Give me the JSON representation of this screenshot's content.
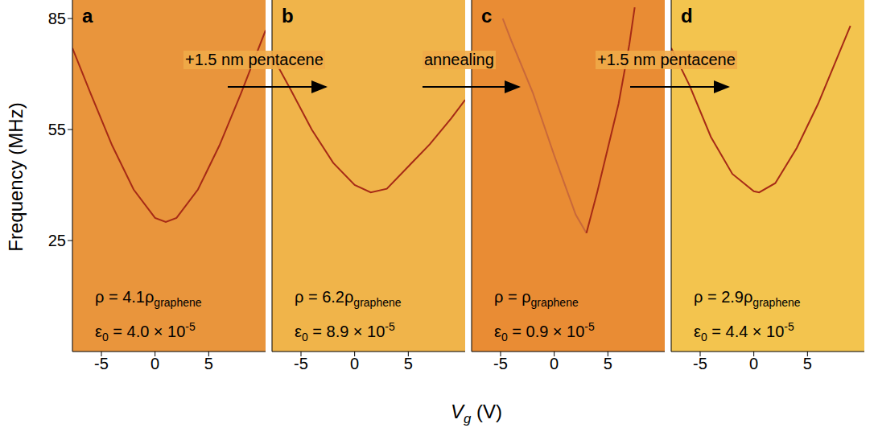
{
  "axis_titles": {
    "y": "Frequency (MHz)",
    "x": [
      {
        "t": "V"
      },
      {
        "sub": "g"
      },
      {
        "t": " (V)"
      }
    ]
  },
  "arrows": [
    {
      "label": "+1.5 nm pentacene"
    },
    {
      "label": "annealing"
    },
    {
      "label": "+1.5 nm pentacene"
    }
  ],
  "chart_data": [
    {
      "type": "line",
      "title": "a",
      "background": "#e9953c",
      "x": [
        -7.7,
        -6,
        -4,
        -2,
        0,
        1,
        2,
        4,
        6,
        8,
        10.3
      ],
      "series": [
        {
          "color": "#a62a16",
          "values": [
            77,
            64.7,
            50.7,
            38.8,
            31.1,
            30,
            31.1,
            38.8,
            50.7,
            64.7,
            81.8
          ]
        }
      ],
      "xlim": [
        -7.7,
        10.3
      ],
      "ylim": [
        -5,
        90
      ],
      "xticks": [
        -5,
        0,
        5
      ],
      "yticks": [
        25,
        55,
        85
      ],
      "tick_labels": true,
      "annotations": [
        [
          {
            "t": "ρ = 4.1ρ"
          },
          {
            "sub": "graphene"
          }
        ],
        [
          {
            "t": "ε"
          },
          {
            "sub": "0"
          },
          {
            "t": " = 4.0 × 10"
          },
          {
            "sup": "-5"
          }
        ]
      ]
    },
    {
      "type": "line",
      "title": "b",
      "background": "#f0b44a",
      "x": [
        -7.7,
        -6,
        -4,
        -2,
        0,
        1.5,
        3,
        5,
        7,
        9,
        10.3
      ],
      "series": [
        {
          "color": "#a62a16",
          "values": [
            75,
            66,
            55,
            46,
            40,
            38,
            39,
            45,
            51,
            58,
            63
          ]
        }
      ],
      "xlim": [
        -7.7,
        10.3
      ],
      "ylim": [
        -5,
        90
      ],
      "xticks": [
        -5,
        0,
        5
      ],
      "yticks": [
        25,
        55,
        85
      ],
      "tick_labels": "x",
      "annotations": [
        [
          {
            "t": "ρ = 6.2ρ"
          },
          {
            "sub": "graphene"
          }
        ],
        [
          {
            "t": "ε"
          },
          {
            "sub": "0"
          },
          {
            "t": " = 8.9 × 10"
          },
          {
            "sup": "-5"
          }
        ]
      ]
    },
    {
      "type": "line",
      "title": "c",
      "background": "#e98c34",
      "x": [
        -4.8,
        -4,
        -2,
        0,
        2,
        3,
        4,
        5,
        6,
        7,
        7.5
      ],
      "series": [
        {
          "color": "#c9683a",
          "values": [
            85,
            79,
            65,
            48,
            32,
            27,
            null,
            null,
            null,
            null,
            null
          ]
        },
        {
          "color": "#a62a16",
          "values": [
            null,
            null,
            null,
            null,
            null,
            27,
            38,
            50,
            62,
            78,
            88
          ]
        }
      ],
      "xlim": [
        -7.7,
        10.3
      ],
      "ylim": [
        -5,
        90
      ],
      "xticks": [
        -5,
        0,
        5
      ],
      "yticks": [
        25,
        55,
        85
      ],
      "tick_labels": "x",
      "annotations": [
        [
          {
            "t": "ρ = ρ"
          },
          {
            "sub": "graphene"
          }
        ],
        [
          {
            "t": "ε"
          },
          {
            "sub": "0"
          },
          {
            "t": " = 0.9 × 10"
          },
          {
            "sup": "-5"
          }
        ]
      ]
    },
    {
      "type": "line",
      "title": "d",
      "background": "#f3c44e",
      "x": [
        -7.7,
        -6,
        -4,
        -2,
        0,
        0.5,
        2,
        4,
        6,
        8,
        9
      ],
      "series": [
        {
          "color": "#a62a16",
          "values": [
            77,
            67,
            53,
            43,
            38.3,
            38,
            40.5,
            50,
            62,
            76,
            83
          ]
        }
      ],
      "xlim": [
        -7.7,
        10.3
      ],
      "ylim": [
        -5,
        90
      ],
      "xticks": [
        -5,
        0,
        5
      ],
      "yticks": [
        25,
        55,
        85
      ],
      "tick_labels": "x",
      "annotations": [
        [
          {
            "t": "ρ = 2.9ρ"
          },
          {
            "sub": "graphene"
          }
        ],
        [
          {
            "t": "ε"
          },
          {
            "sub": "0"
          },
          {
            "t": " = 4.4 × 10"
          },
          {
            "sup": "-5"
          }
        ]
      ]
    }
  ]
}
